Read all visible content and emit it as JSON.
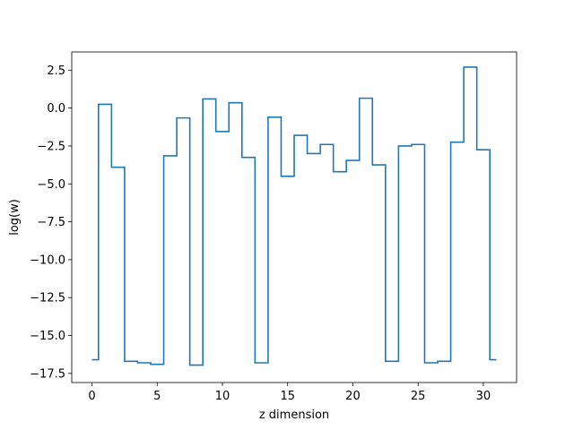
{
  "chart_data": {
    "type": "line",
    "drawstyle": "steps-mid",
    "title": "",
    "xlabel": "z dimension",
    "ylabel": "log(w)",
    "xlim": [
      -1.55,
      32.55
    ],
    "ylim": [
      -18.1,
      3.7
    ],
    "xticks": [
      0,
      5,
      10,
      15,
      20,
      25,
      30
    ],
    "xtick_labels": [
      "0",
      "5",
      "10",
      "15",
      "20",
      "25",
      "30"
    ],
    "yticks": [
      2.5,
      0.0,
      -2.5,
      -5.0,
      -7.5,
      -10.0,
      -12.5,
      -15.0,
      -17.5
    ],
    "ytick_labels": [
      "2.5",
      "0.0",
      "−2.5",
      "−5.0",
      "−7.5",
      "−10.0",
      "−12.5",
      "−15.0",
      "−17.5"
    ],
    "grid": false,
    "color": "#1f77b4",
    "x": [
      0,
      1,
      2,
      3,
      4,
      5,
      6,
      7,
      8,
      9,
      10,
      11,
      12,
      13,
      14,
      15,
      16,
      17,
      18,
      19,
      20,
      21,
      22,
      23,
      24,
      25,
      26,
      27,
      28,
      29,
      30,
      31
    ],
    "y": [
      -16.6,
      0.25,
      -3.9,
      -16.7,
      -16.8,
      -16.9,
      -3.15,
      -0.65,
      -16.95,
      0.6,
      -1.55,
      0.35,
      -3.25,
      -16.8,
      -0.6,
      -4.5,
      -1.8,
      -3.0,
      -2.4,
      -4.2,
      -3.45,
      0.65,
      -3.75,
      -16.7,
      -2.5,
      -2.4,
      -16.8,
      -16.7,
      -2.25,
      2.7,
      -2.75,
      -16.6
    ]
  }
}
